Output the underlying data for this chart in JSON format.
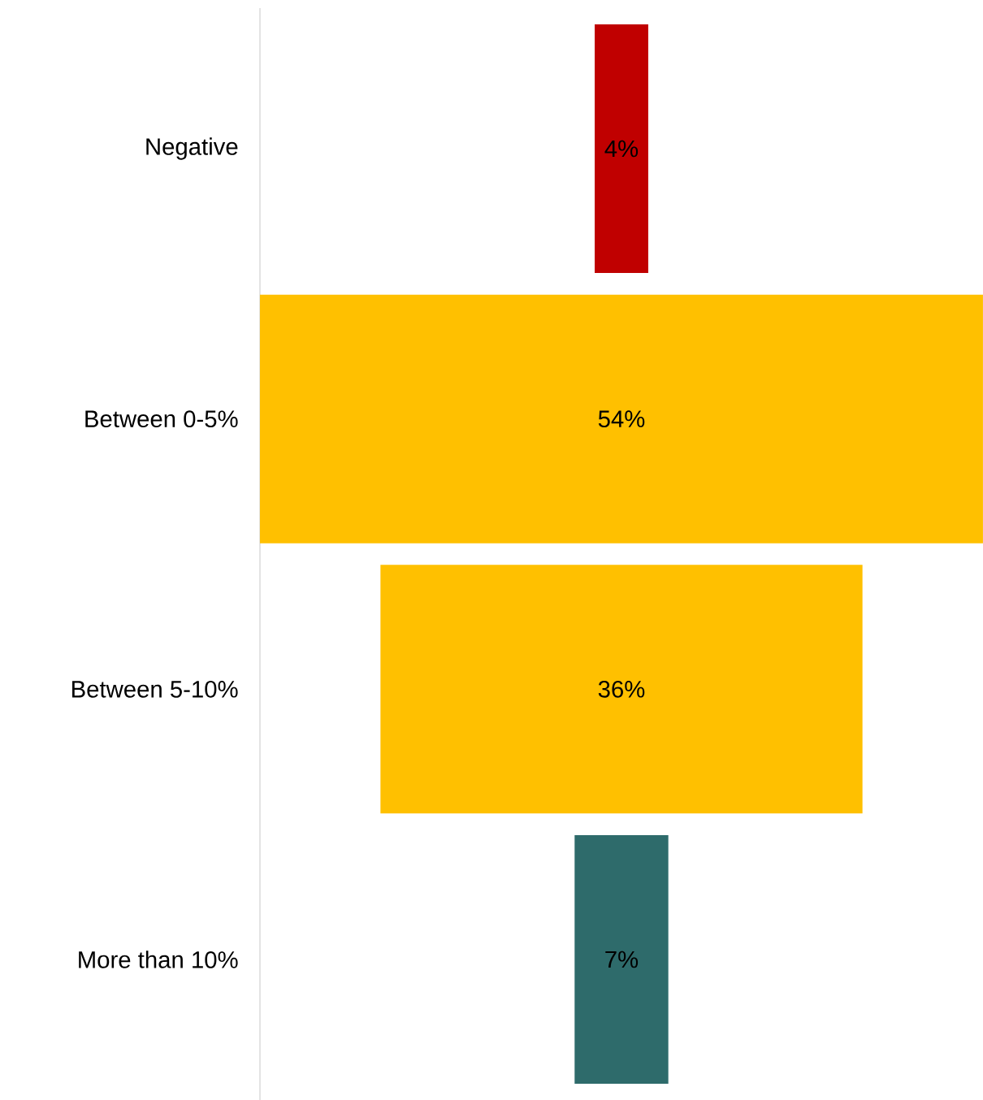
{
  "chart_data": {
    "type": "other",
    "categories": [
      "Negative",
      "Between 0-5%",
      "Between 5-10%",
      "More than 10%"
    ],
    "values": [
      4,
      54,
      36,
      7
    ],
    "colors": [
      "#c00000",
      "#ffc000",
      "#ffc000",
      "#2e6b6b"
    ],
    "value_labels": [
      "4%",
      "54%",
      "36%",
      "7%"
    ]
  }
}
